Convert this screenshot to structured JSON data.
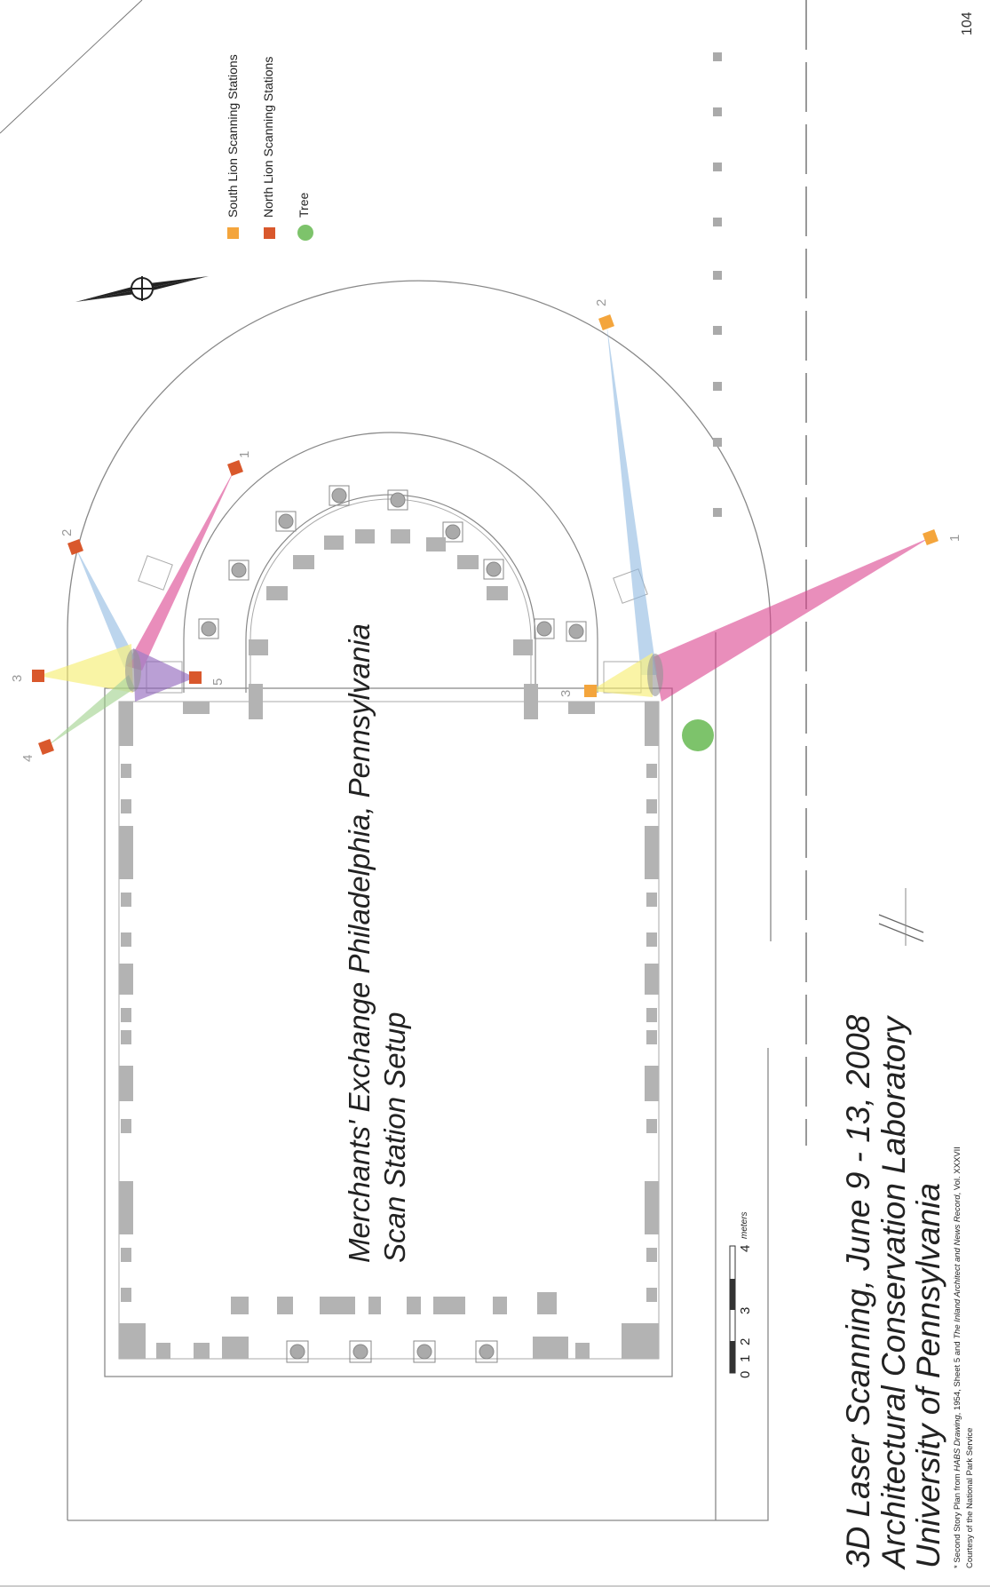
{
  "page_number": "104",
  "title": {
    "line1": "Merchants' Exchange Philadelphia, Pennsylvania",
    "line2": "Scan Station Setup"
  },
  "subtitle": {
    "line1": "3D Laser Scanning, June 9 - 13, 2008",
    "line2": "Architectural Conservation Laboratory",
    "line3": "University of Pennsylvania"
  },
  "legend": [
    {
      "label": "South Lion Scanning Stations",
      "color": "#f4a53c",
      "shape": "square"
    },
    {
      "label": "North Lion Scanning Stations",
      "color": "#d9582c",
      "shape": "square"
    },
    {
      "label": "Tree",
      "color": "#7dc36b",
      "shape": "circle"
    }
  ],
  "scale_bar": {
    "labels": [
      "0",
      "1",
      "2",
      "3",
      "4"
    ],
    "unit": "meters"
  },
  "footnote": {
    "prefix": "* Second Story Plan from ",
    "source1": "HABS Drawing",
    "middle": ", 1954, Sheet 5 and ",
    "source2": "The Inland Architect and News Record",
    "suffix": ", Vol. XXXVII",
    "line2": "Courtesy of the National Park Service"
  },
  "north_lion_stations": [
    "1",
    "2",
    "3",
    "4",
    "5"
  ],
  "south_lion_stations": [
    "1",
    "2",
    "3"
  ],
  "colors": {
    "north_station": "#d9582c",
    "south_station": "#f4a53c",
    "tree": "#7dc36b",
    "wall": "#b3b3b3",
    "scan_pink": "#d9418d",
    "scan_blue": "#8fb8e0",
    "scan_yellow": "#f5ec6a",
    "scan_green": "#9ed08a",
    "scan_purple": "#8c5fb8"
  },
  "icons": [
    "north-arrow-icon"
  ]
}
